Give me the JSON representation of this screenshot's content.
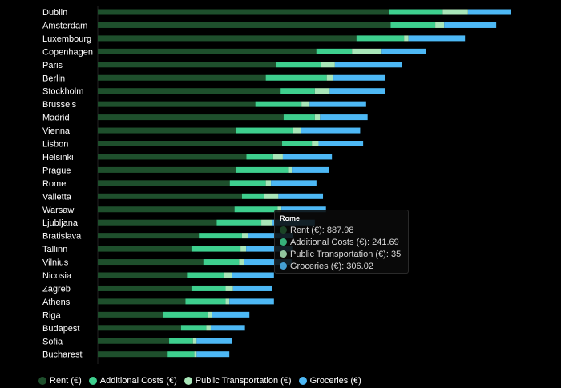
{
  "chart_data": {
    "type": "bar",
    "orientation": "horizontal",
    "stacked": true,
    "categories": [
      "Dublin",
      "Amsterdam",
      "Luxembourg",
      "Copenhagen",
      "Paris",
      "Berlin",
      "Stockholm",
      "Brussels",
      "Madrid",
      "Vienna",
      "Lisbon",
      "Helsinki",
      "Prague",
      "Rome",
      "Valletta",
      "Warsaw",
      "Ljubljana",
      "Bratislava",
      "Tallinn",
      "Vilnius",
      "Nicosia",
      "Zagreb",
      "Athens",
      "Riga",
      "Budapest",
      "Sofia",
      "Bucharest"
    ],
    "series": [
      {
        "name": "Rent (€)",
        "color": "#1e4f2c",
        "values": [
          1960,
          1970,
          1740,
          1470,
          1200,
          1130,
          1230,
          1060,
          1250,
          930,
          1240,
          1000,
          930,
          888,
          970,
          920,
          800,
          680,
          630,
          710,
          600,
          630,
          590,
          440,
          560,
          480,
          470
        ]
      },
      {
        "name": "Additional Costs (€)",
        "color": "#3ecf8e",
        "values": [
          360,
          300,
          320,
          240,
          300,
          410,
          230,
          310,
          210,
          380,
          200,
          180,
          350,
          242,
          150,
          290,
          300,
          290,
          330,
          240,
          250,
          230,
          270,
          300,
          170,
          160,
          180
        ]
      },
      {
        "name": "Public Transportation (€)",
        "color": "#a8e6b8",
        "values": [
          170,
          60,
          30,
          200,
          95,
          45,
          100,
          55,
          35,
          55,
          45,
          65,
          25,
          35,
          95,
          25,
          70,
          40,
          38,
          35,
          55,
          50,
          25,
          30,
          30,
          25,
          15
        ]
      },
      {
        "name": "Groceries (€)",
        "color": "#4db8f5",
        "values": [
          290,
          350,
          380,
          295,
          450,
          350,
          370,
          380,
          320,
          400,
          300,
          330,
          250,
          306,
          300,
          300,
          290,
          300,
          310,
          320,
          280,
          260,
          300,
          250,
          230,
          240,
          220
        ]
      }
    ],
    "tooltip": {
      "title": "Rome",
      "rows": [
        {
          "text": "Rent (€): 887.98",
          "color": "#1e4f2c"
        },
        {
          "text": "Additional Costs (€): 241.69",
          "color": "#3ecf8e"
        },
        {
          "text": "Public Transportation (€): 35",
          "color": "#a8e6b8"
        },
        {
          "text": "Groceries (€): 306.02",
          "color": "#4db8f5"
        }
      ]
    },
    "legend_position": "bottom-left",
    "grid": false
  }
}
